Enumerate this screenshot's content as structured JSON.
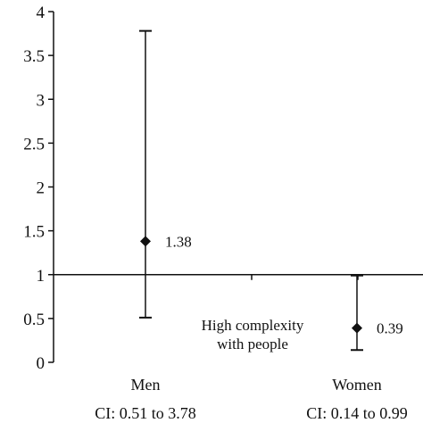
{
  "chart_data": {
    "type": "scatter",
    "title": "",
    "xlabel": "",
    "ylabel": "",
    "ylim": [
      0,
      4
    ],
    "y_ticks": [
      0,
      0.5,
      1,
      1.5,
      2,
      2.5,
      3,
      3.5,
      4
    ],
    "y_tick_labels": [
      "0",
      "0.5",
      "1",
      "1.5",
      "2",
      "2.5",
      "3",
      "3.5",
      "4"
    ],
    "reference_line": 1,
    "grid": false,
    "legend": "none",
    "categories": [
      "Men",
      "Women"
    ],
    "points": [
      {
        "category": "Men",
        "value": 1.38,
        "value_label": "1.38",
        "ci_low": 0.51,
        "ci_high": 3.78,
        "ci_label": "CI: 0.51 to 3.78"
      },
      {
        "category": "Women",
        "value": 0.39,
        "value_label": "0.39",
        "ci_low": 0.14,
        "ci_high": 0.99,
        "ci_label": "CI: 0.14 to 0.99"
      }
    ],
    "annotation": [
      "High complexity",
      "with people"
    ]
  }
}
